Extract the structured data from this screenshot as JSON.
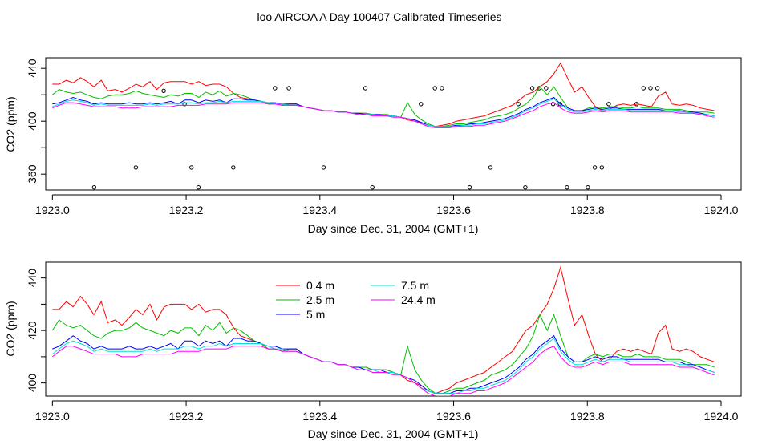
{
  "chart_data": [
    {
      "type": "line",
      "title": "loo AIRCOA A  Day 100407  Calibrated Timeseries",
      "xlabel": "Day since Dec. 31, 2004 (GMT+1)",
      "ylabel": "CO2 (ppm)",
      "xlim": [
        1922.99,
        1924.03
      ],
      "ylim": [
        348,
        448
      ],
      "x_ticks": [
        1923.0,
        1923.2,
        1923.4,
        1923.6,
        1923.8,
        1924.0
      ],
      "x_tick_labels": [
        "1923.0",
        "1923.2",
        "1923.4",
        "1923.6",
        "1923.8",
        "1924.0"
      ],
      "y_ticks": [
        360,
        380,
        400,
        420,
        440
      ],
      "y_tick_labels": [
        "360",
        "",
        "400",
        "",
        "440"
      ],
      "grid": false,
      "series_colors": [
        "#ff0000",
        "#00c000",
        "#0000ff",
        "#00e0e0",
        "#ff00ff"
      ],
      "point_series": {
        "marker": "circle-open",
        "x_step": 0.0104,
        "values": [
          null,
          350,
          null,
          365,
          null,
          null,
          423,
          null,
          413,
          365,
          350,
          null,
          null,
          null,
          null,
          365,
          null,
          null,
          null,
          null,
          null,
          425,
          null,
          425,
          null,
          null,
          null,
          null,
          365,
          null,
          null,
          null,
          null,
          null,
          425,
          350,
          null,
          null,
          null,
          null,
          null,
          null,
          413,
          null,
          425,
          425,
          null,
          null,
          null,
          350,
          null,
          null,
          365,
          null,
          null,
          null,
          413,
          350,
          425,
          425,
          425,
          413,
          413,
          350,
          null,
          null,
          350,
          365,
          365,
          413,
          null,
          null,
          null,
          413,
          425,
          425,
          425
        ],
        "indices": [
          4,
          6,
          11,
          12,
          13,
          15,
          16,
          17,
          19,
          20,
          21,
          22,
          23,
          24,
          25,
          26,
          27,
          28,
          29,
          30,
          31,
          32,
          33,
          34,
          35,
          36,
          37,
          38,
          39,
          40,
          41,
          42,
          43,
          44,
          45,
          46,
          47,
          48,
          49,
          50,
          51,
          52,
          53,
          54,
          55,
          56,
          57,
          58,
          59,
          60,
          61,
          62,
          63,
          64,
          65,
          66,
          67,
          68,
          69,
          70,
          71,
          72,
          73,
          74,
          75,
          76,
          77,
          78,
          79,
          80,
          81,
          82,
          83,
          84,
          85,
          86,
          87
        ]
      },
      "x": [
        1923.0,
        1923.01,
        1923.021,
        1923.031,
        1923.042,
        1923.052,
        1923.062,
        1923.073,
        1923.083,
        1923.094,
        1923.104,
        1923.115,
        1923.125,
        1923.135,
        1923.146,
        1923.156,
        1923.167,
        1923.177,
        1923.188,
        1923.198,
        1923.208,
        1923.219,
        1923.229,
        1923.24,
        1923.25,
        1923.26,
        1923.271,
        1923.281,
        1923.292,
        1923.302,
        1923.312,
        1923.323,
        1923.333,
        1923.344,
        1923.354,
        1923.365,
        1923.375,
        1923.385,
        1923.396,
        1923.406,
        1923.417,
        1923.427,
        1923.438,
        1923.448,
        1923.458,
        1923.469,
        1923.479,
        1923.49,
        1923.5,
        1923.51,
        1923.521,
        1923.531,
        1923.542,
        1923.552,
        1923.562,
        1923.573,
        1923.583,
        1923.594,
        1923.604,
        1923.615,
        1923.625,
        1923.635,
        1923.646,
        1923.656,
        1923.667,
        1923.677,
        1923.688,
        1923.698,
        1923.708,
        1923.719,
        1923.729,
        1923.74,
        1923.75,
        1923.76,
        1923.771,
        1923.781,
        1923.792,
        1923.802,
        1923.812,
        1923.823,
        1923.833,
        1923.844,
        1923.854,
        1923.865,
        1923.875,
        1923.885,
        1923.896,
        1923.906,
        1923.917,
        1923.927,
        1923.938,
        1923.948,
        1923.958,
        1923.969,
        1923.979,
        1923.99
      ],
      "series": [
        {
          "name": "0.4 m",
          "values": [
            428,
            428,
            431,
            429,
            433,
            430,
            426,
            431,
            423,
            424,
            422,
            425,
            428,
            426,
            430,
            424,
            429,
            430,
            430,
            430,
            428,
            430,
            427,
            428,
            428,
            426,
            421,
            418,
            417,
            416,
            415,
            413,
            413,
            412,
            413,
            413,
            411,
            410,
            409,
            408,
            408,
            407,
            407,
            406,
            406,
            406,
            405,
            405,
            405,
            404,
            403,
            401,
            400,
            399,
            397,
            396,
            397,
            398,
            400,
            401,
            402,
            403,
            404,
            406,
            408,
            410,
            412,
            416,
            420,
            422,
            426,
            430,
            436,
            444,
            432,
            422,
            426,
            418,
            411,
            408,
            409,
            412,
            413,
            412,
            413,
            412,
            411,
            419,
            422,
            413,
            412,
            413,
            412,
            410,
            409,
            408
          ]
        },
        {
          "name": "2.5 m",
          "values": [
            420,
            424,
            422,
            421,
            422,
            420,
            418,
            417,
            419,
            420,
            420,
            421,
            423,
            421,
            420,
            419,
            418,
            420,
            419,
            421,
            421,
            418,
            422,
            420,
            423,
            419,
            421,
            420,
            418,
            416,
            415,
            413,
            413,
            412,
            413,
            413,
            411,
            410,
            409,
            408,
            408,
            407,
            407,
            406,
            406,
            406,
            405,
            405,
            405,
            404,
            403,
            414,
            405,
            401,
            398,
            396,
            396,
            397,
            398,
            398,
            399,
            400,
            401,
            403,
            404,
            405,
            407,
            410,
            413,
            418,
            426,
            420,
            426,
            418,
            410,
            408,
            408,
            410,
            411,
            410,
            411,
            411,
            410,
            410,
            411,
            410,
            410,
            410,
            409,
            409,
            409,
            408,
            407,
            407,
            407,
            406
          ]
        },
        {
          "name": "5 m",
          "values": [
            413,
            414,
            416,
            418,
            416,
            415,
            413,
            414,
            413,
            413,
            413,
            414,
            413,
            413,
            414,
            413,
            414,
            415,
            413,
            416,
            416,
            414,
            416,
            415,
            416,
            414,
            417,
            417,
            416,
            416,
            415,
            414,
            414,
            413,
            413,
            413,
            411,
            410,
            409,
            408,
            408,
            407,
            407,
            406,
            406,
            405,
            405,
            405,
            404,
            404,
            403,
            402,
            401,
            399,
            397,
            396,
            396,
            396,
            397,
            397,
            398,
            398,
            399,
            400,
            401,
            402,
            404,
            406,
            409,
            411,
            414,
            416,
            418,
            413,
            410,
            408,
            408,
            409,
            410,
            409,
            410,
            410,
            409,
            409,
            409,
            409,
            409,
            409,
            408,
            408,
            408,
            407,
            407,
            406,
            405,
            404
          ]
        },
        {
          "name": "7.5 m",
          "values": [
            411,
            413,
            415,
            416,
            415,
            414,
            412,
            413,
            412,
            412,
            412,
            412,
            412,
            412,
            413,
            412,
            413,
            413,
            413,
            414,
            414,
            413,
            414,
            414,
            415,
            414,
            415,
            415,
            415,
            415,
            415,
            414,
            413,
            413,
            412,
            412,
            411,
            410,
            409,
            408,
            408,
            407,
            407,
            406,
            405,
            405,
            405,
            404,
            404,
            404,
            403,
            402,
            400,
            398,
            397,
            396,
            396,
            396,
            396,
            397,
            397,
            398,
            398,
            399,
            400,
            401,
            403,
            405,
            408,
            410,
            413,
            415,
            417,
            412,
            409,
            407,
            407,
            408,
            409,
            408,
            409,
            409,
            409,
            408,
            408,
            408,
            408,
            408,
            408,
            408,
            407,
            407,
            406,
            405,
            405,
            404
          ]
        },
        {
          "name": "24.4 m",
          "values": [
            410,
            412,
            414,
            414,
            413,
            412,
            411,
            411,
            411,
            411,
            410,
            410,
            410,
            411,
            411,
            411,
            411,
            411,
            412,
            412,
            412,
            412,
            413,
            413,
            413,
            413,
            414,
            414,
            414,
            414,
            414,
            413,
            413,
            412,
            412,
            412,
            411,
            410,
            409,
            408,
            408,
            407,
            407,
            406,
            405,
            405,
            404,
            404,
            404,
            403,
            403,
            402,
            400,
            398,
            396,
            395,
            395,
            395,
            396,
            396,
            396,
            397,
            397,
            398,
            399,
            400,
            402,
            404,
            406,
            408,
            411,
            413,
            414,
            410,
            407,
            406,
            406,
            407,
            408,
            407,
            408,
            408,
            408,
            407,
            407,
            407,
            407,
            407,
            407,
            407,
            406,
            406,
            406,
            405,
            404,
            403
          ]
        }
      ]
    },
    {
      "type": "line",
      "xlabel": "Day since Dec. 31, 2004 (GMT+1)",
      "ylabel": "CO2 (ppm)",
      "xlim": [
        1922.99,
        1924.03
      ],
      "ylim": [
        395,
        446
      ],
      "x_ticks": [
        1923.0,
        1923.2,
        1923.4,
        1923.6,
        1923.8,
        1924.0
      ],
      "x_tick_labels": [
        "1923.0",
        "1923.2",
        "1923.4",
        "1923.6",
        "1923.8",
        "1924.0"
      ],
      "y_ticks": [
        400,
        410,
        420,
        430,
        440
      ],
      "y_tick_labels": [
        "400",
        "",
        "420",
        "",
        "440"
      ],
      "grid": false,
      "legend": {
        "placement": "top-left",
        "columns": 2,
        "entries": [
          "0.4 m",
          "2.5 m",
          "5 m",
          "7.5 m",
          "24.4 m"
        ],
        "colors": [
          "#ff0000",
          "#00c000",
          "#0000ff",
          "#00e0e0",
          "#ff00ff"
        ]
      },
      "same_series_as": 0
    }
  ]
}
